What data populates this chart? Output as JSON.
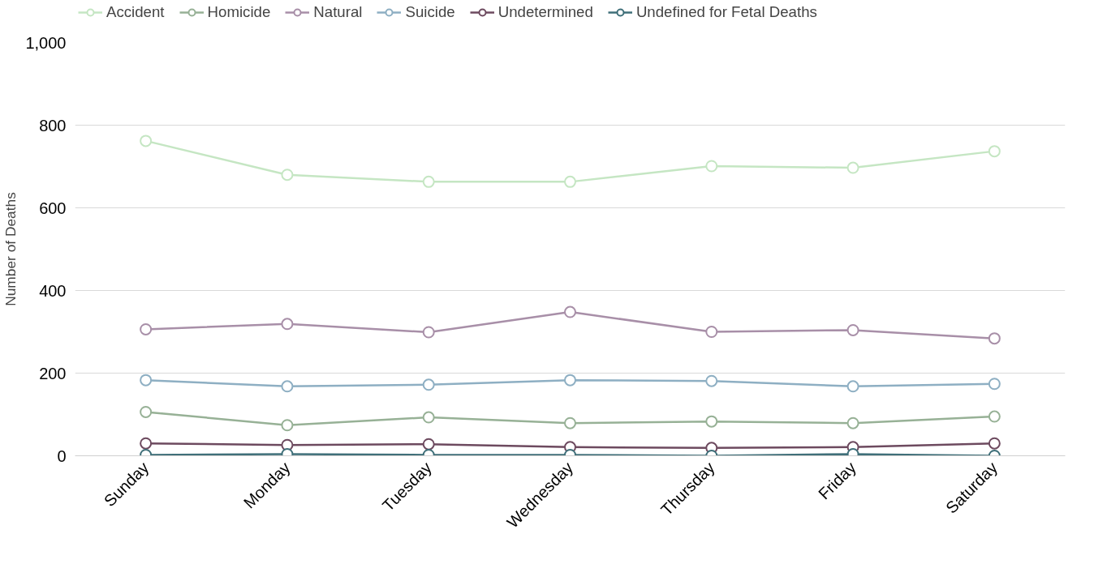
{
  "chart_data": {
    "type": "line",
    "ylabel": "Number of Deaths",
    "categories": [
      "Sunday",
      "Monday",
      "Tuesday",
      "Wednesday",
      "Thursday",
      "Friday",
      "Saturday"
    ],
    "ylim": [
      0,
      1000
    ],
    "yticks": [
      0,
      200,
      400,
      600,
      800,
      {
        "value": 1000,
        "label": "1,000"
      }
    ],
    "grid": "y",
    "legend": "top",
    "marker": "circle",
    "line_style": "solid",
    "series": [
      {
        "name": "Accident",
        "color": "#c5e6c3",
        "values": [
          762,
          680,
          663,
          663,
          701,
          697,
          737
        ]
      },
      {
        "name": "Homicide",
        "color": "#97b196",
        "values": [
          106,
          74,
          93,
          79,
          83,
          79,
          95
        ]
      },
      {
        "name": "Natural",
        "color": "#a88fa8",
        "values": [
          306,
          319,
          299,
          348,
          300,
          304,
          284
        ]
      },
      {
        "name": "Suicide",
        "color": "#8eafc3",
        "values": [
          183,
          168,
          172,
          183,
          181,
          168,
          174
        ]
      },
      {
        "name": "Undetermined",
        "color": "#6d4a5f",
        "values": [
          30,
          26,
          28,
          21,
          19,
          21,
          30
        ]
      },
      {
        "name": "Undefined for Fetal Deaths",
        "color": "#3f6f79",
        "values": [
          2,
          4,
          2,
          2,
          0,
          4,
          0
        ]
      }
    ]
  }
}
